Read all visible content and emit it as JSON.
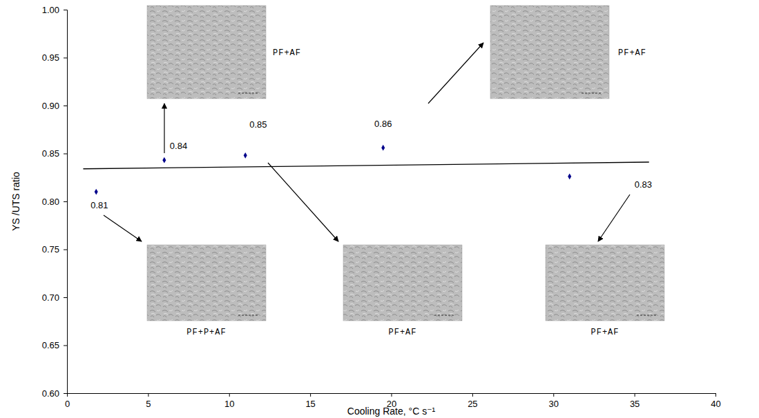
{
  "chart_data": {
    "type": "scatter",
    "x_label": "Cooling Rate, °C s⁻¹",
    "y_label": "YS /UTS ratio",
    "xlim": [
      0,
      40
    ],
    "xticks": [
      0,
      5,
      10,
      15,
      20,
      25,
      30,
      35,
      40
    ],
    "ylim": [
      0.6,
      1
    ],
    "yticks": [
      {
        "value": 0.6,
        "label": "0.60"
      },
      0.65,
      {
        "value": 0.7,
        "label": "0.70"
      },
      0.75,
      {
        "value": 0.8,
        "label": "0.80"
      },
      0.85,
      {
        "value": 0.9,
        "label": "0.90"
      },
      0.95,
      {
        "value": 1,
        "label": "1.00"
      }
    ],
    "grid": false,
    "data_labels": true,
    "series": [
      {
        "type": "scatter",
        "color": "#00008b",
        "marker": "diamond",
        "x": [
          1.8,
          6,
          11,
          19.5,
          31
        ],
        "values": [
          0.81,
          0.843,
          0.848,
          0.856,
          0.826
        ],
        "value_labels": [
          "0.81",
          "0.84",
          "0.85",
          "0.86",
          "0.83"
        ],
        "annotations": [
          "PF+P+AF",
          "PF+AF",
          "PF+AF",
          "PF+AF",
          "PF+AF"
        ]
      },
      {
        "type": "line",
        "color": "#000000",
        "line_style": "solid",
        "x": [
          1,
          35.9
        ],
        "values": [
          0.834,
          0.841
        ]
      }
    ]
  }
}
